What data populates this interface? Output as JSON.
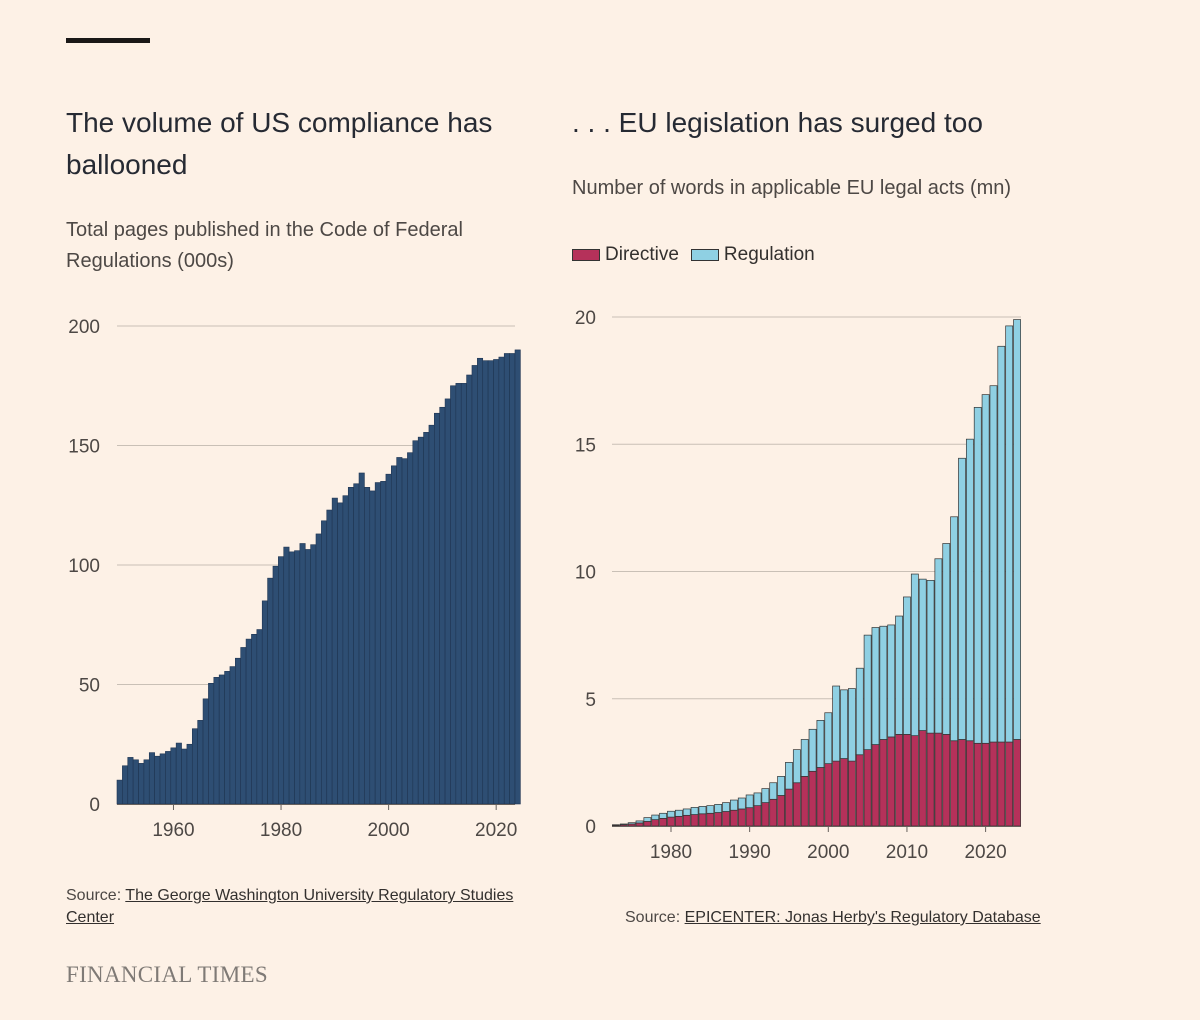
{
  "footer": {
    "brand": "FINANCIAL TIMES"
  },
  "left": {
    "title": "The volume of US compliance has ballooned",
    "subtitle": "Total pages published in the Code of Federal Regulations (000s)",
    "source_prefix": "Source: ",
    "source_link": "The George Washington University Regulatory Studies Center"
  },
  "right": {
    "title": ". . . EU legislation has surged too",
    "subtitle": "Number of words in applicable EU legal acts (mn)",
    "source_prefix": "Source: ",
    "source_link": "EPICENTER: Jonas Herby's Regulatory Database"
  },
  "colors": {
    "us_bar": "#2e4e73",
    "directive": "#b5315a",
    "regulation": "#8fd0e3",
    "gridline": "#c9c0b6"
  },
  "chart_data": [
    {
      "type": "bar",
      "title": "The volume of US compliance has ballooned",
      "subtitle": "Total pages published in the Code of Federal Regulations (000s)",
      "x_start": 1950,
      "x_end": 2023,
      "x_ticks": [
        1960,
        1980,
        2000,
        2020
      ],
      "y_ticks": [
        0,
        50,
        100,
        150,
        200
      ],
      "ylim": [
        0,
        200
      ],
      "grid": true,
      "values": [
        10,
        16,
        19.5,
        18.5,
        17,
        18.5,
        21.5,
        20,
        21,
        22,
        23.5,
        25.5,
        23,
        25,
        31.5,
        35,
        44,
        50.5,
        53,
        54,
        55.5,
        57.5,
        61,
        65.5,
        69,
        71,
        73,
        85,
        94.5,
        99.5,
        103.5,
        107.5,
        105.5,
        106,
        109,
        106.5,
        108.5,
        113,
        118.5,
        123,
        128,
        126,
        129,
        132.5,
        134,
        138.5,
        132.5,
        131,
        134.5,
        135,
        138,
        141.5,
        145,
        144.5,
        147,
        152,
        153.5,
        155.5,
        158.5,
        163.5,
        166,
        169.5,
        175,
        176,
        176,
        179.5,
        183.5,
        186.5,
        185.5,
        185.5,
        186,
        187,
        188.5,
        188.5,
        190
      ]
    },
    {
      "type": "bar",
      "stacked": true,
      "title": ". . . EU legislation has surged too",
      "subtitle": "Number of words in applicable EU legal acts (mn)",
      "x_start": 1973,
      "x_end": 2024,
      "x_ticks": [
        1980,
        1990,
        2000,
        2010,
        2020
      ],
      "y_ticks": [
        0,
        5,
        10,
        15,
        20
      ],
      "ylim": [
        0,
        20
      ],
      "grid": true,
      "legend": "top-left",
      "series": [
        {
          "name": "Directive",
          "values": [
            0.03,
            0.05,
            0.08,
            0.12,
            0.18,
            0.25,
            0.3,
            0.35,
            0.38,
            0.42,
            0.45,
            0.48,
            0.5,
            0.53,
            0.57,
            0.62,
            0.67,
            0.72,
            0.8,
            0.92,
            1.05,
            1.2,
            1.45,
            1.7,
            1.95,
            2.15,
            2.3,
            2.45,
            2.55,
            2.65,
            2.55,
            2.8,
            3.0,
            3.2,
            3.4,
            3.5,
            3.6,
            3.6,
            3.55,
            3.75,
            3.65,
            3.65,
            3.6,
            3.35,
            3.4,
            3.35,
            3.25,
            3.25,
            3.3,
            3.3,
            3.3,
            3.4
          ]
        },
        {
          "name": "Regulation",
          "values": [
            0.02,
            0.03,
            0.05,
            0.08,
            0.15,
            0.18,
            0.2,
            0.23,
            0.24,
            0.25,
            0.28,
            0.29,
            0.3,
            0.32,
            0.35,
            0.4,
            0.43,
            0.5,
            0.5,
            0.55,
            0.65,
            0.75,
            1.05,
            1.3,
            1.45,
            1.65,
            1.85,
            2.0,
            2.95,
            2.7,
            2.85,
            3.4,
            4.5,
            4.6,
            4.45,
            4.4,
            4.65,
            5.4,
            6.35,
            5.95,
            6.0,
            6.85,
            7.5,
            8.8,
            11.05,
            11.85,
            13.2,
            13.7,
            14.0,
            15.55,
            16.35,
            16.5
          ]
        }
      ]
    }
  ]
}
